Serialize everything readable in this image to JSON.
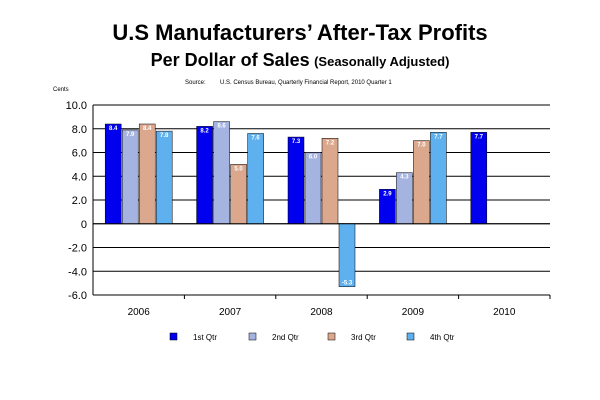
{
  "chart_data": {
    "type": "bar",
    "title": "U.S Manufacturers’ After-Tax Profits",
    "subtitle_main": "Per Dollar of Sales",
    "subtitle_note": "(Seasonally Adjusted)",
    "source_label": "Source:",
    "source_value": "U.S. Census Bureau, Quarterly Financial Report, 2010 Quarter 1",
    "ylabel": "Cents",
    "ylim": [
      -6.0,
      10.0
    ],
    "yticks": [
      "10.0",
      "8.0",
      "6.0",
      "4.0",
      "2.0",
      "0",
      "-2.0",
      "-4.0",
      "-6.0"
    ],
    "ytick_values": [
      10,
      8,
      6,
      4,
      2,
      0,
      -2,
      -4,
      -6
    ],
    "categories": [
      "2006",
      "2007",
      "2008",
      "2009",
      "2010"
    ],
    "grid": true,
    "legend_placement": "bottom",
    "series": [
      {
        "name": "1st Qtr",
        "color": "#0000ee",
        "values": [
          8.4,
          8.2,
          7.3,
          2.9,
          7.7
        ]
      },
      {
        "name": "2nd Qtr",
        "color": "#a4b3e0",
        "values": [
          7.9,
          8.6,
          6.0,
          4.3,
          null
        ]
      },
      {
        "name": "3rd Qtr",
        "color": "#dba88e",
        "values": [
          8.4,
          5.0,
          7.2,
          7.0,
          null
        ]
      },
      {
        "name": "4th Qtr",
        "color": "#5fb0ee",
        "values": [
          7.8,
          7.6,
          -5.3,
          7.7,
          null
        ]
      }
    ]
  }
}
